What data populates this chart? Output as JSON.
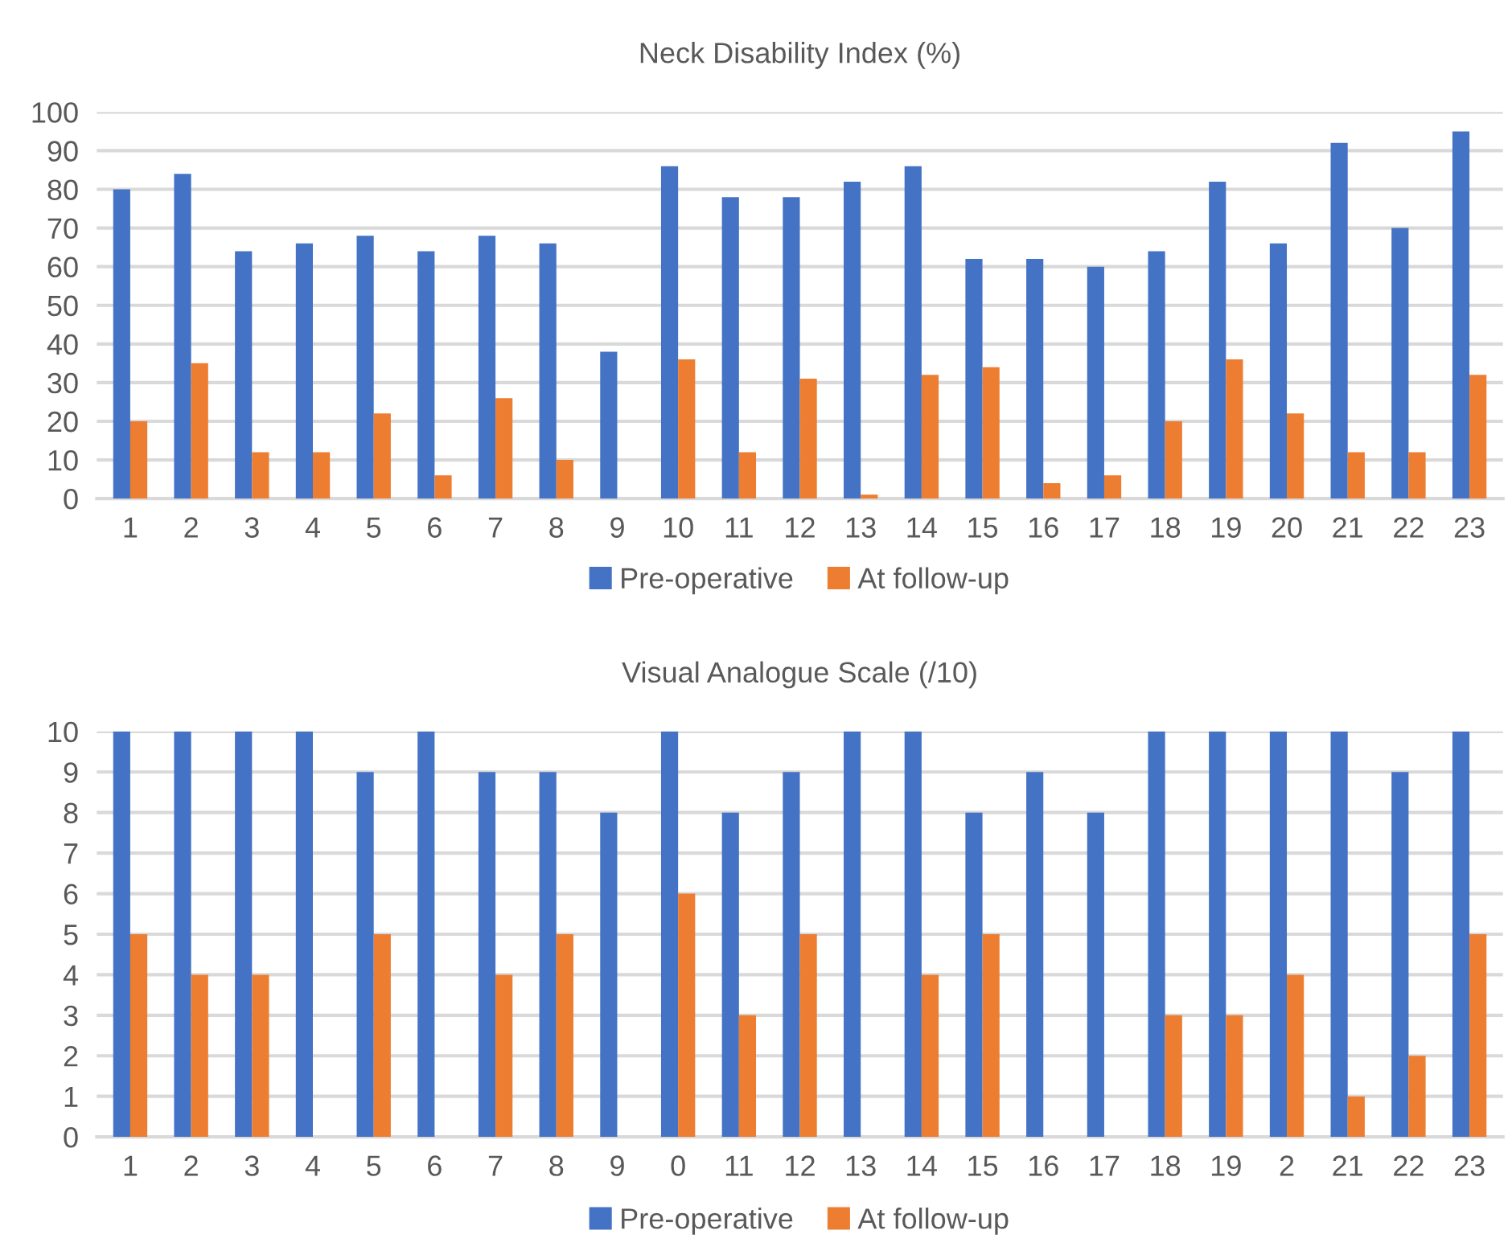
{
  "chart_data": [
    {
      "type": "bar",
      "title": "Neck Disability Index (%)",
      "categories": [
        "1",
        "2",
        "3",
        "4",
        "5",
        "6",
        "7",
        "8",
        "9",
        "10",
        "11",
        "12",
        "13",
        "14",
        "15",
        "16",
        "17",
        "18",
        "19",
        "20",
        "21",
        "22",
        "23"
      ],
      "series": [
        {
          "name": "Pre-operative",
          "color": "#4472c4",
          "values": [
            80,
            84,
            64,
            66,
            68,
            64,
            68,
            66,
            38,
            86,
            78,
            78,
            82,
            86,
            62,
            62,
            60,
            64,
            82,
            66,
            92,
            70,
            95
          ]
        },
        {
          "name": "At follow-up",
          "color": "#ed7d31",
          "values": [
            20,
            35,
            12,
            12,
            22,
            6,
            26,
            10,
            0,
            36,
            12,
            31,
            1,
            32,
            34,
            4,
            6,
            20,
            36,
            22,
            12,
            12,
            32
          ]
        }
      ],
      "ylim": [
        0,
        100
      ],
      "yticks": [
        0,
        10,
        20,
        30,
        40,
        50,
        60,
        70,
        80,
        90,
        100
      ],
      "grid": "y",
      "legend": "bottom"
    },
    {
      "type": "bar",
      "title": "Visual Analogue Scale (/10)",
      "categories": [
        "1",
        "2",
        "3",
        "4",
        "5",
        "6",
        "7",
        "8",
        "9",
        "0",
        "11",
        "12",
        "13",
        "14",
        "15",
        "16",
        "17",
        "18",
        "19",
        "2",
        "21",
        "22",
        "23"
      ],
      "series": [
        {
          "name": "Pre-operative",
          "color": "#4472c4",
          "values": [
            10,
            10,
            10,
            10,
            9,
            10,
            9,
            9,
            8,
            10,
            8,
            9,
            10,
            10,
            8,
            9,
            8,
            10,
            10,
            10,
            10,
            9,
            10
          ]
        },
        {
          "name": "At follow-up",
          "color": "#ed7d31",
          "values": [
            5,
            4,
            4,
            0,
            5,
            0,
            4,
            5,
            0,
            6,
            3,
            5,
            0,
            4,
            5,
            0,
            0,
            3,
            3,
            4,
            1,
            2,
            5
          ]
        }
      ],
      "ylim": [
        0,
        10
      ],
      "yticks": [
        0,
        1,
        2,
        3,
        4,
        5,
        6,
        7,
        8,
        9,
        10
      ],
      "grid": "y",
      "legend": "bottom"
    }
  ]
}
